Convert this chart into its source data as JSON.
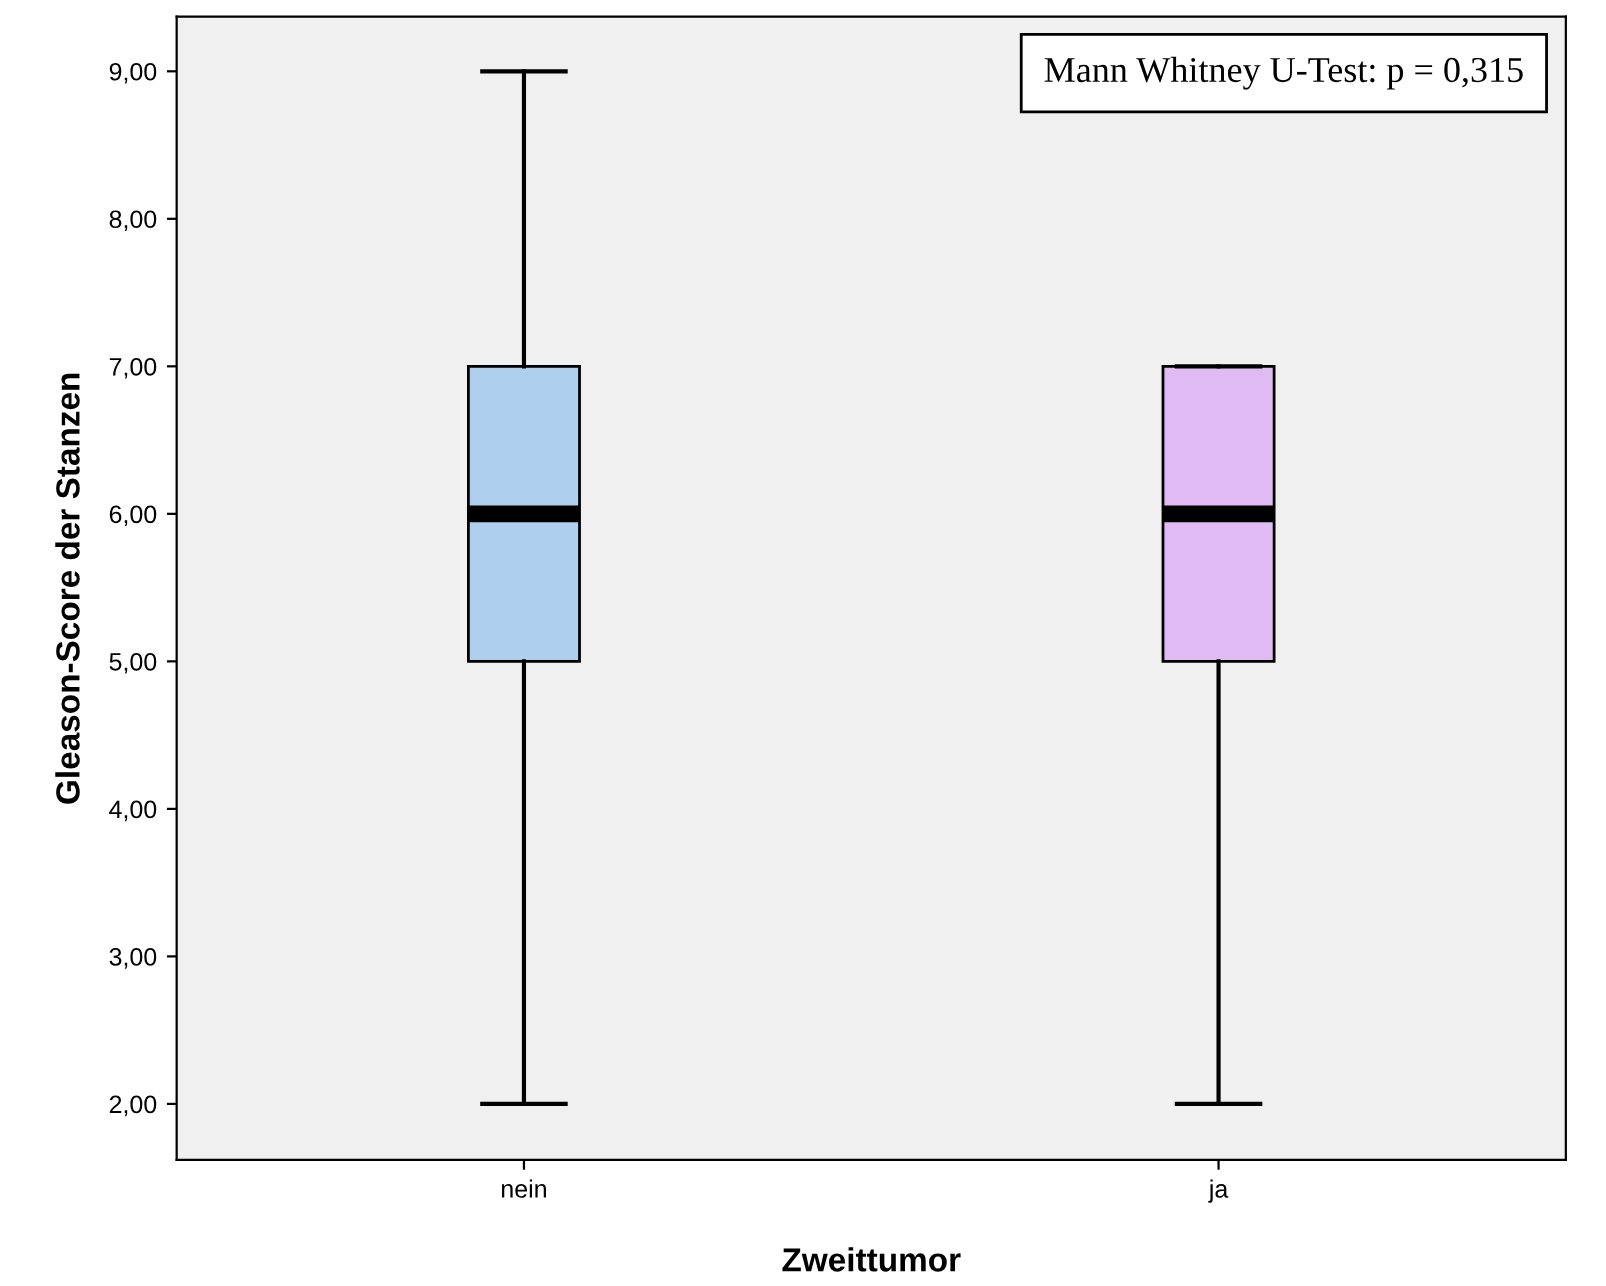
{
  "chart_data": {
    "type": "box",
    "xlabel": "Zweittumor",
    "ylabel": "Gleason-Score der Stanzen",
    "categories": [
      "nein",
      "ja"
    ],
    "boxes": [
      {
        "low": 2,
        "q1": 5,
        "median": 6,
        "q3": 7,
        "high": 9
      },
      {
        "low": 2,
        "q1": 5,
        "median": 6,
        "q3": 7,
        "high": 7
      }
    ],
    "colors": [
      "#aed0ee",
      "#e0baf2"
    ],
    "ylim": [
      1.62,
      9.37
    ],
    "yticks": [
      {
        "value": 2,
        "label": "2,00"
      },
      {
        "value": 3,
        "label": "3,00"
      },
      {
        "value": 4,
        "label": "4,00"
      },
      {
        "value": 5,
        "label": "5,00"
      },
      {
        "value": 6,
        "label": "6,00"
      },
      {
        "value": 7,
        "label": "7,00"
      },
      {
        "value": 8,
        "label": "8,00"
      },
      {
        "value": 9,
        "label": "9,00"
      }
    ],
    "annotations": [
      "Mann Whitney U-Test: p = 0,315"
    ],
    "grid": false,
    "legend": false
  }
}
